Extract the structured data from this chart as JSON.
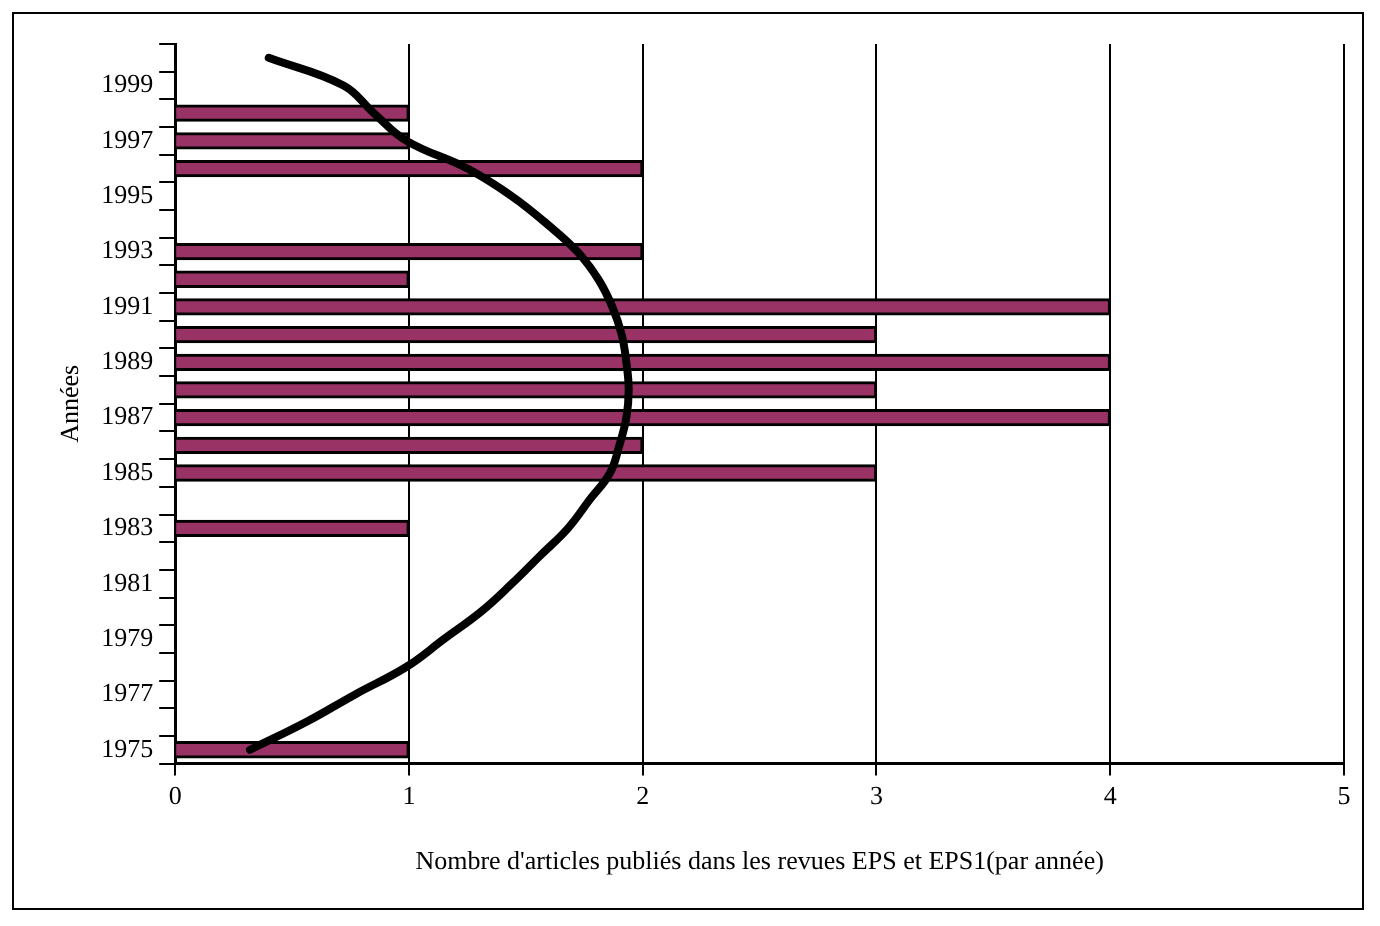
{
  "chart_data": {
    "type": "bar",
    "orientation": "horizontal",
    "xlabel": "Nombre d'articles publiés dans les revues EPS et EPS1(par année)",
    "ylabel": "Années",
    "categories": [
      null,
      "1999",
      null,
      "1997",
      null,
      "1995",
      null,
      "1993",
      null,
      "1991",
      null,
      "1989",
      null,
      "1987",
      null,
      "1985",
      null,
      "1983",
      null,
      "1981",
      null,
      "1979",
      null,
      "1977",
      null,
      "1975"
    ],
    "series": [
      {
        "color": "#993366",
        "values": [
          null,
          null,
          1,
          1,
          2,
          null,
          null,
          2,
          1,
          4,
          3,
          4,
          3,
          4,
          2,
          3,
          null,
          1,
          null,
          null,
          null,
          null,
          null,
          null,
          null,
          1
        ]
      },
      {
        "type": "line",
        "color": "#000000",
        "values": [
          0.4,
          0.72,
          0.85,
          0.99,
          1.25,
          1.44,
          1.59,
          1.72,
          1.81,
          1.87,
          1.91,
          1.93,
          1.94,
          1.93,
          1.9,
          1.86,
          1.77,
          1.68,
          1.56,
          1.44,
          1.31,
          1.15,
          0.99,
          0.77,
          0.56,
          0.32
        ]
      }
    ],
    "xlim": [
      0,
      5
    ],
    "xticks": [
      0,
      1,
      2,
      3,
      4,
      5
    ],
    "grid": "x",
    "legend": false,
    "marker": "none",
    "line_style": "solid"
  }
}
